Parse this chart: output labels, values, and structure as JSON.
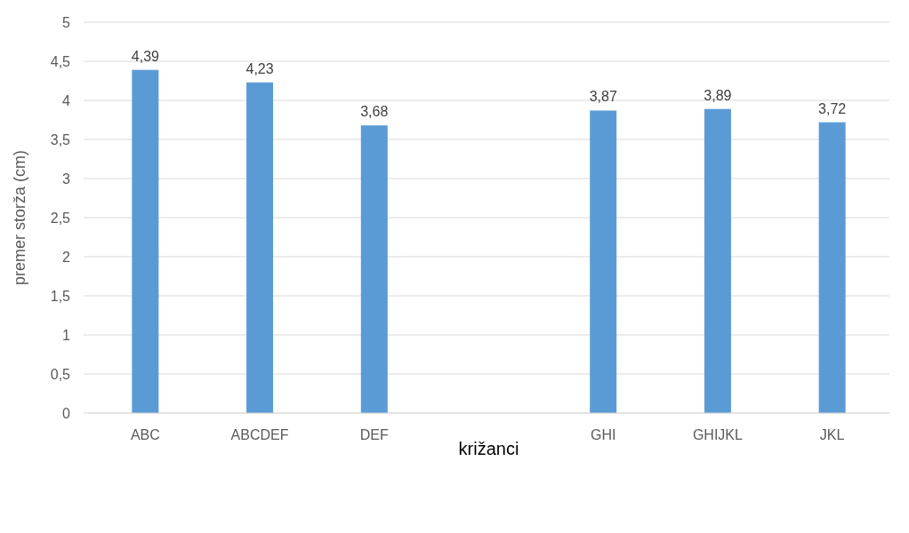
{
  "chart_data": {
    "type": "bar",
    "xlabel": "križanci",
    "ylabel": "premer storža (cm)",
    "categories": [
      "ABC",
      "ABCDEF",
      "DEF",
      null,
      "GHI",
      "GHIJKL",
      "JKL"
    ],
    "values": [
      4.39,
      4.23,
      3.68,
      null,
      3.87,
      3.89,
      3.72
    ],
    "value_labels": [
      "4,39",
      "4,23",
      "3,68",
      null,
      "3,87",
      "3,89",
      "3,72"
    ],
    "color": "#5b9bd5",
    "ylim": [
      0,
      5
    ],
    "yticks": [
      0,
      {
        "value": 0.5,
        "label": "0,5"
      },
      1,
      {
        "value": 1.5,
        "label": "1,5"
      },
      2,
      {
        "value": 2.5,
        "label": "2,5"
      },
      3,
      {
        "value": 3.5,
        "label": "3,5"
      },
      4,
      {
        "value": 4.5,
        "label": "4,5"
      },
      5
    ],
    "grid": "y"
  }
}
